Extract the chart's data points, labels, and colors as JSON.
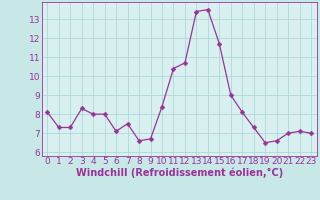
{
  "x": [
    0,
    1,
    2,
    3,
    4,
    5,
    6,
    7,
    8,
    9,
    10,
    11,
    12,
    13,
    14,
    15,
    16,
    17,
    18,
    19,
    20,
    21,
    22,
    23
  ],
  "y": [
    8.1,
    7.3,
    7.3,
    8.3,
    8.0,
    8.0,
    7.1,
    7.5,
    6.6,
    6.7,
    8.4,
    10.4,
    10.7,
    13.4,
    13.5,
    11.7,
    9.0,
    8.1,
    7.3,
    6.5,
    6.6,
    7.0,
    7.1,
    7.0
  ],
  "line_color": "#993399",
  "marker": "D",
  "marker_size": 2.5,
  "background_color": "#c8e8e8",
  "plot_bg_color": "#d8f0f0",
  "grid_color": "#b0d8d8",
  "xlabel": "Windchill (Refroidissement éolien,°C)",
  "xlim": [
    -0.5,
    23.5
  ],
  "ylim": [
    5.8,
    13.9
  ],
  "yticks": [
    6,
    7,
    8,
    9,
    10,
    11,
    12,
    13
  ],
  "xticks": [
    0,
    1,
    2,
    3,
    4,
    5,
    6,
    7,
    8,
    9,
    10,
    11,
    12,
    13,
    14,
    15,
    16,
    17,
    18,
    19,
    20,
    21,
    22,
    23
  ],
  "tick_fontsize": 6.5,
  "xlabel_fontsize": 7,
  "spine_color": "#993399",
  "tick_color": "#993399"
}
